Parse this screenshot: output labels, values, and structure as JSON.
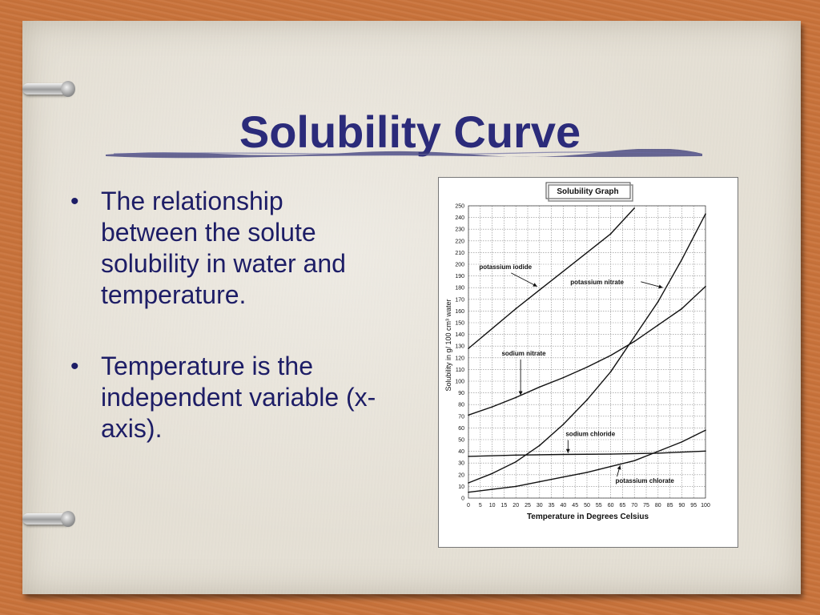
{
  "slide": {
    "title": "Solubility Curve",
    "bullets": [
      "The relationship between the solute solubility in water and temperature.",
      "Temperature is the independent variable (x-axis)."
    ],
    "colors": {
      "title": "#2b2b7a",
      "text": "#1d1d66",
      "background": "#c9733b",
      "paper": "#e6e1d6"
    }
  },
  "chart_data": {
    "type": "line",
    "title": "Solubility Graph",
    "xlabel": "Temperature in Degrees Celsius",
    "ylabel": "Solubility in g/ 100 cm³ water",
    "xlim": [
      0,
      100
    ],
    "ylim": [
      0,
      250
    ],
    "xticks": [
      0,
      5,
      10,
      15,
      20,
      25,
      30,
      35,
      40,
      45,
      50,
      55,
      60,
      65,
      70,
      75,
      80,
      85,
      90,
      95,
      100
    ],
    "yticks": [
      0,
      10,
      20,
      30,
      40,
      50,
      60,
      70,
      80,
      90,
      100,
      110,
      120,
      130,
      140,
      150,
      160,
      170,
      180,
      190,
      200,
      210,
      220,
      230,
      240,
      250
    ],
    "grid": true,
    "series": [
      {
        "name": "potassium iodide",
        "x": [
          0,
          10,
          20,
          30,
          40,
          50,
          60,
          70
        ],
        "y": [
          128,
          145,
          162,
          178,
          194,
          210,
          226,
          248
        ]
      },
      {
        "name": "potassium nitrate",
        "x": [
          0,
          10,
          20,
          30,
          40,
          50,
          60,
          70,
          80,
          90,
          100
        ],
        "y": [
          13,
          21,
          31,
          45,
          63,
          84,
          108,
          138,
          168,
          204,
          243
        ]
      },
      {
        "name": "sodium nitrate",
        "x": [
          0,
          10,
          20,
          30,
          40,
          50,
          60,
          70,
          80,
          90,
          100
        ],
        "y": [
          71,
          78,
          86,
          95,
          103,
          112,
          122,
          134,
          148,
          162,
          181
        ]
      },
      {
        "name": "sodium chloride",
        "x": [
          0,
          20,
          40,
          60,
          80,
          100
        ],
        "y": [
          35.7,
          36.8,
          37.3,
          37.6,
          38.4,
          40.2
        ]
      },
      {
        "name": "potassium chlorate",
        "x": [
          0,
          10,
          20,
          30,
          40,
          50,
          60,
          70,
          80,
          90,
          100
        ],
        "y": [
          5,
          7.5,
          10,
          14,
          18,
          22,
          27,
          32,
          40,
          48,
          58
        ]
      }
    ],
    "annotations": [
      {
        "text": "potassium iodide",
        "series": "potassium iodide"
      },
      {
        "text": "potassium nitrate",
        "series": "potassium nitrate"
      },
      {
        "text": "sodium nitrate",
        "series": "sodium nitrate"
      },
      {
        "text": "sodium chloride",
        "series": "sodium chloride"
      },
      {
        "text": "potassium chlorate",
        "series": "potassium chlorate"
      }
    ]
  }
}
